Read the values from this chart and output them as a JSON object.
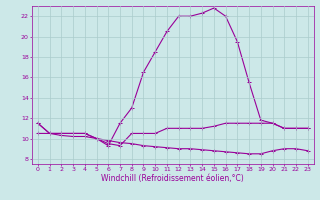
{
  "x_values": [
    0,
    1,
    2,
    3,
    4,
    5,
    6,
    7,
    8,
    9,
    10,
    11,
    12,
    13,
    14,
    15,
    16,
    17,
    18,
    19,
    20,
    21,
    22,
    23
  ],
  "line1": [
    11.5,
    10.5,
    10.5,
    10.5,
    10.5,
    10.0,
    9.5,
    9.3,
    10.5,
    10.5,
    10.5,
    11.0,
    11.0,
    11.0,
    11.0,
    11.2,
    11.5,
    11.5,
    11.5,
    11.5,
    11.5,
    11.0,
    11.0,
    11.0
  ],
  "line2": [
    10.5,
    10.5,
    10.3,
    10.2,
    10.2,
    10.0,
    9.8,
    9.6,
    9.5,
    9.3,
    9.2,
    9.1,
    9.0,
    9.0,
    8.9,
    8.8,
    8.7,
    8.6,
    8.5,
    8.5,
    8.8,
    9.0,
    9.0,
    8.8
  ],
  "line3": [
    11.5,
    10.5,
    10.5,
    10.5,
    10.5,
    10.0,
    9.3,
    11.5,
    13.0,
    16.5,
    18.5,
    20.5,
    22.0,
    22.0,
    22.3,
    22.8,
    22.0,
    19.5,
    15.5,
    11.8,
    11.5,
    11.0,
    11.0,
    11.0
  ],
  "bg_color": "#cce8e8",
  "line_color": "#990099",
  "grid_color": "#aacccc",
  "ylim": [
    7.5,
    23.0
  ],
  "xlim": [
    -0.5,
    23.5
  ],
  "yticks": [
    8,
    10,
    12,
    14,
    16,
    18,
    20,
    22
  ],
  "xticks": [
    0,
    1,
    2,
    3,
    4,
    5,
    6,
    7,
    8,
    9,
    10,
    11,
    12,
    13,
    14,
    15,
    16,
    17,
    18,
    19,
    20,
    21,
    22,
    23
  ],
  "xlabel": "Windchill (Refroidissement éolien,°C)",
  "marker": "+",
  "linewidth": 0.8,
  "markersize": 3,
  "markeredgewidth": 0.7,
  "tick_fontsize": 4.5,
  "xlabel_fontsize": 5.5
}
